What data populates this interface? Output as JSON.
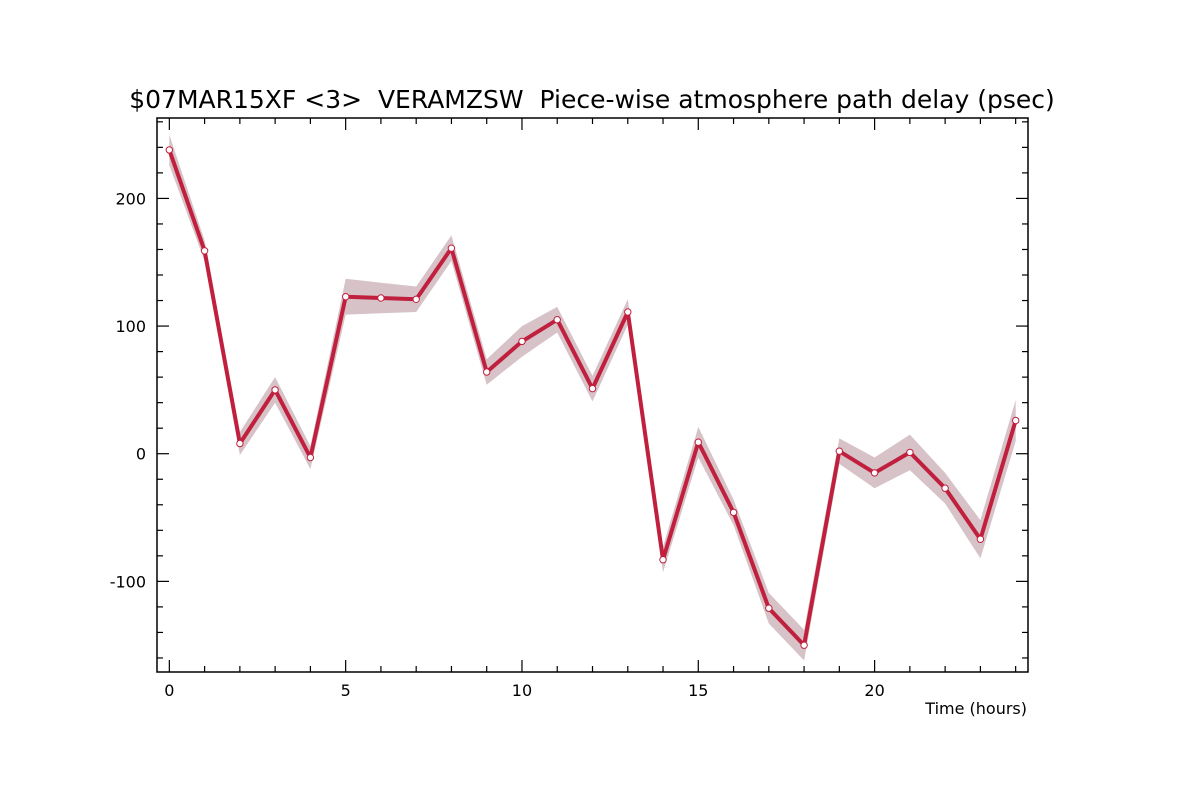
{
  "chart_data": {
    "type": "line",
    "title": "$07MAR15XF <3>  VERAMZSW  Piece-wise atmosphere path delay (psec)",
    "xlabel": "Time (hours)",
    "ylabel": "",
    "xlim": [
      -0.35,
      24.35
    ],
    "ylim": [
      -171,
      263
    ],
    "x_ticks": [
      0,
      5,
      10,
      15,
      20
    ],
    "y_ticks": [
      -100,
      0,
      100,
      200
    ],
    "grid": false,
    "colors": {
      "line": "#c0203e",
      "band": "#d6c2c7",
      "marker_fill": "#ffffff"
    },
    "series": [
      {
        "x": [
          0,
          1,
          2,
          3,
          4,
          5,
          6,
          7,
          8,
          9,
          10,
          11,
          12,
          13,
          14,
          15,
          16,
          17,
          18,
          19,
          20,
          21,
          22,
          23,
          24
        ],
        "y": [
          238,
          159,
          8,
          50,
          -3,
          123,
          122,
          121,
          161,
          64,
          88,
          105,
          51,
          111,
          -83,
          9,
          -46,
          -121,
          -150,
          2,
          -15,
          1,
          -27,
          -67,
          26
        ],
        "err": [
          12,
          8,
          9,
          10,
          9,
          14,
          12,
          10,
          10,
          10,
          12,
          10,
          10,
          10,
          10,
          12,
          10,
          12,
          12,
          10,
          12,
          14,
          12,
          15,
          16
        ]
      }
    ]
  }
}
